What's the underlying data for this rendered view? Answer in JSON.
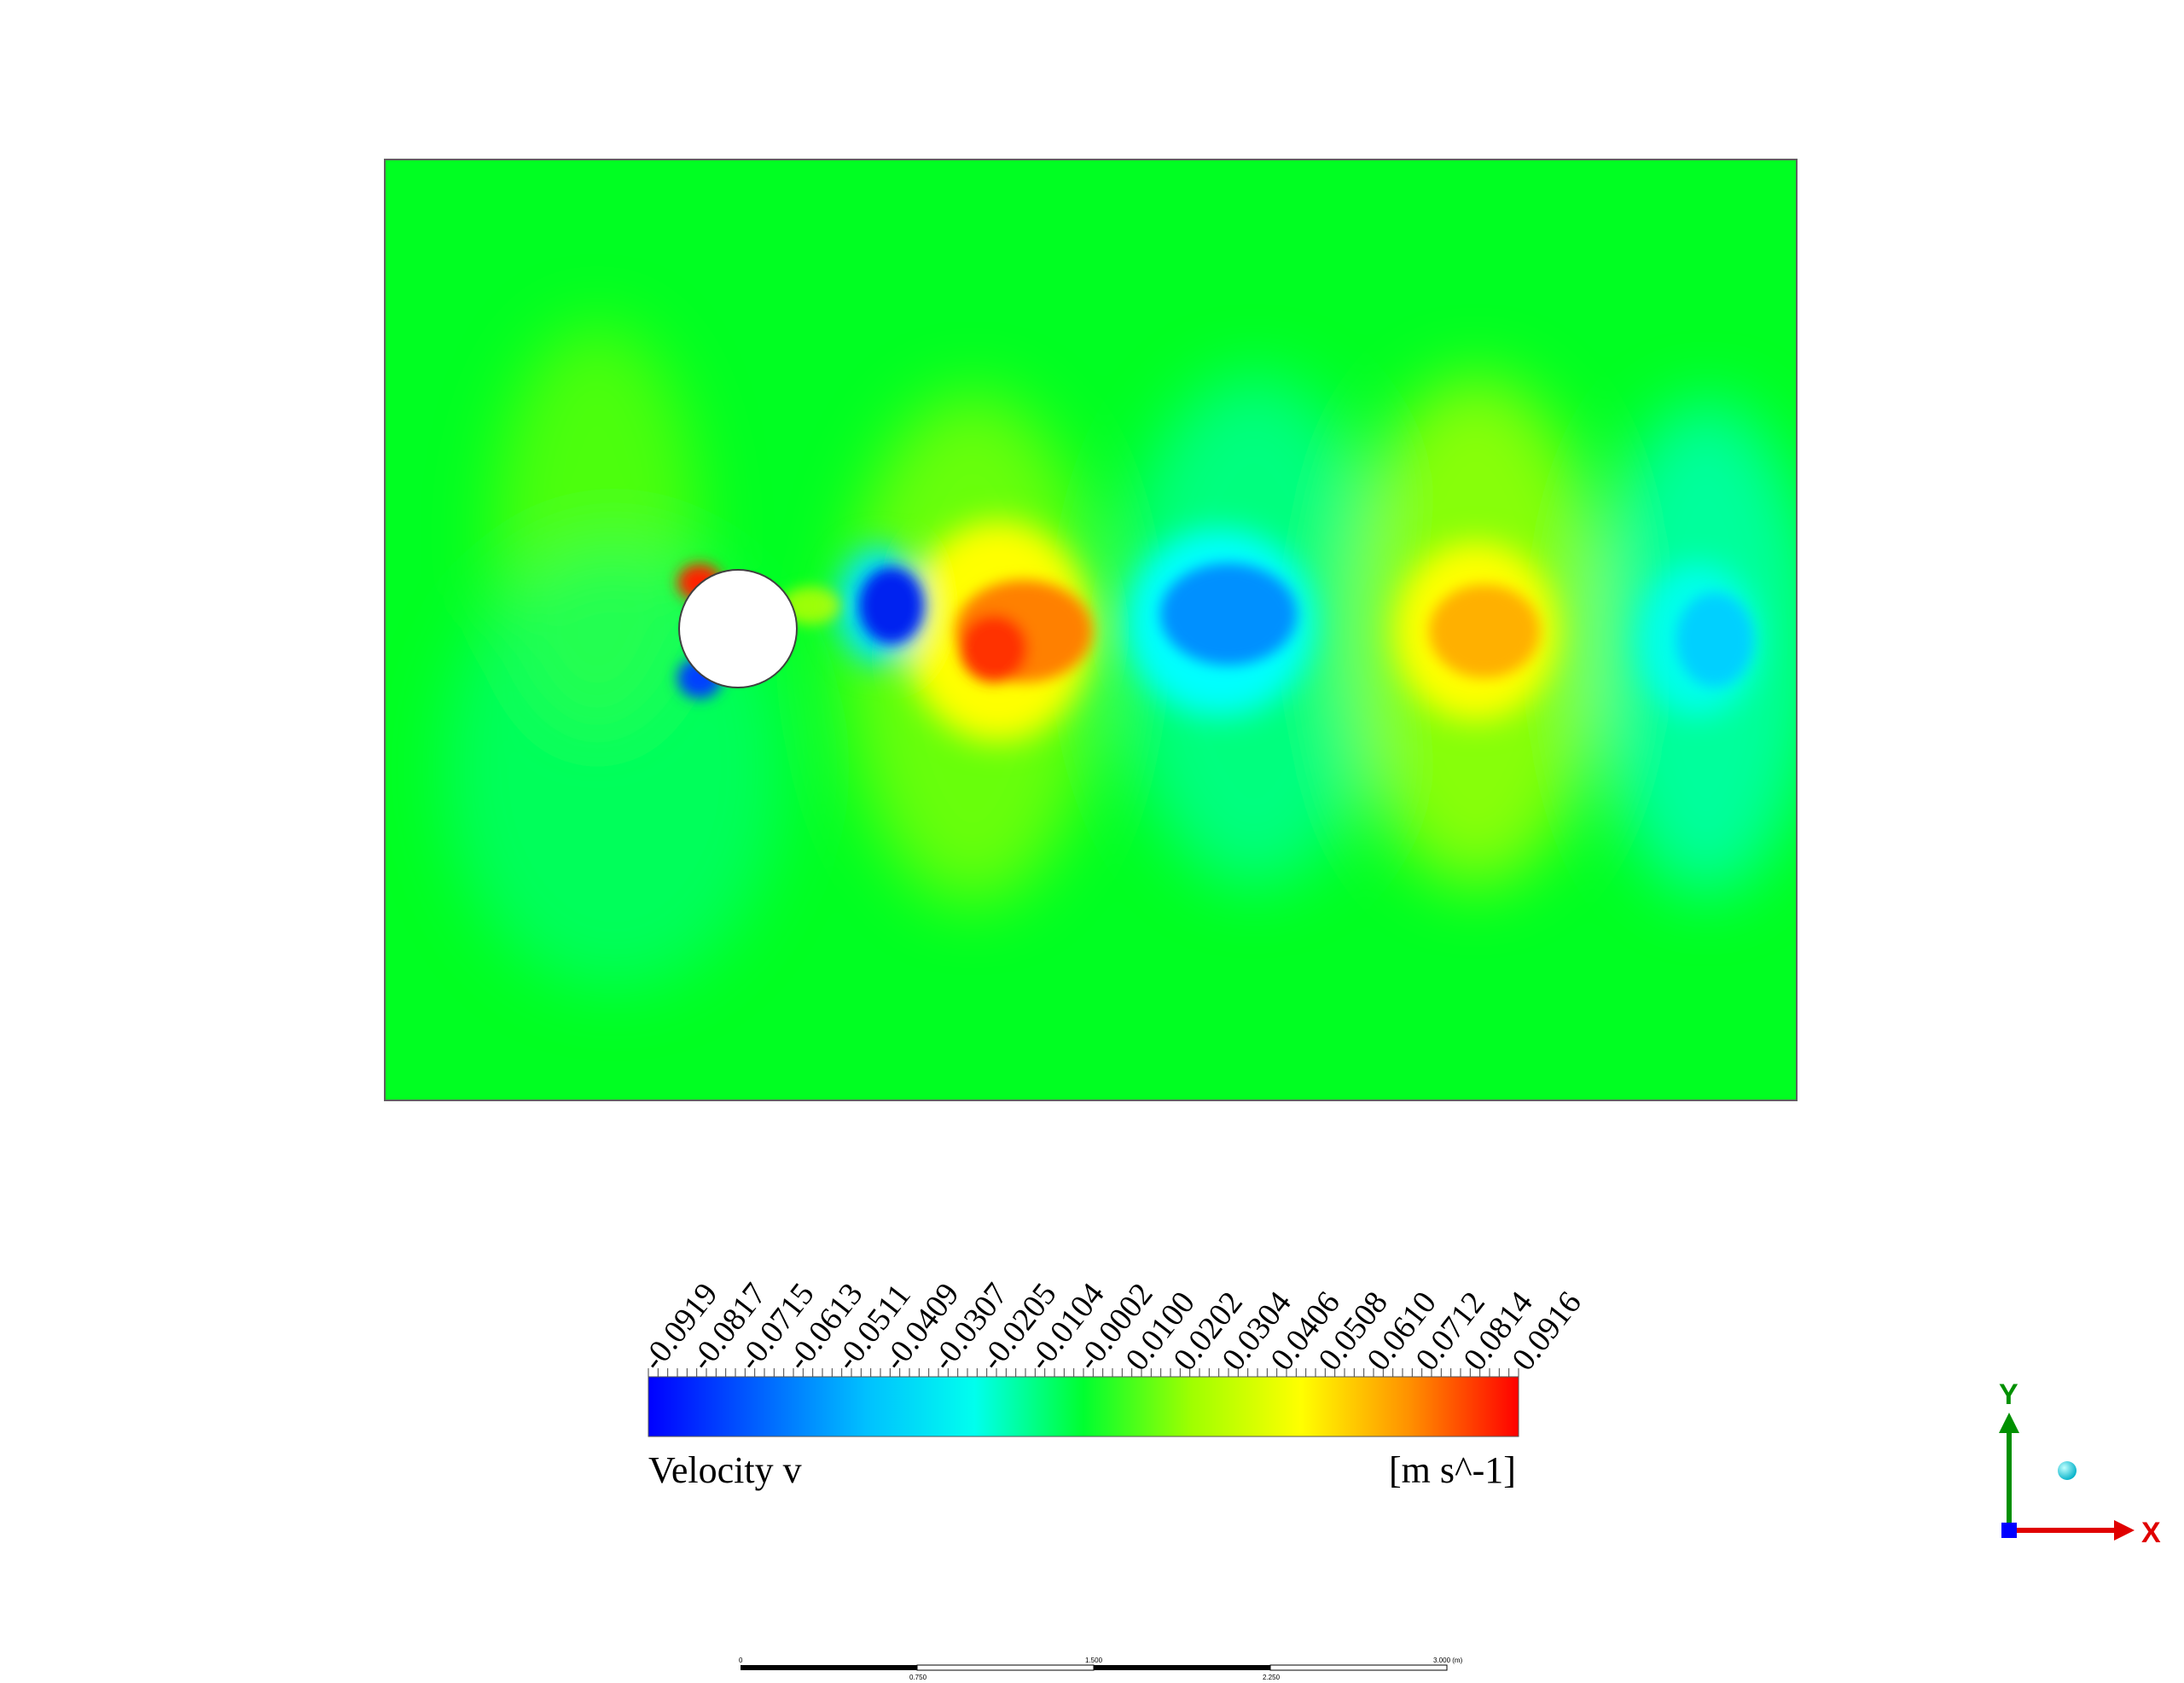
{
  "legend": {
    "title": "Velocity v",
    "units": "[m s^-1]",
    "min": -0.0919,
    "max": 0.0916,
    "tick_labels": [
      "-0.0919",
      "-0.0817",
      "-0.0715",
      "-0.0613",
      "-0.0511",
      "-0.0409",
      "-0.0307",
      "-0.0205",
      "-0.0104",
      "-0.0002",
      "0.0100",
      "0.0202",
      "0.0304",
      "0.0406",
      "0.0508",
      "0.0610",
      "0.0712",
      "0.0814",
      "0.0916"
    ],
    "colormap": [
      "#0000ff",
      "#0060ff",
      "#00c0ff",
      "#00ffee",
      "#00ff30",
      "#a0ff00",
      "#ffff00",
      "#ff9000",
      "#ff0000"
    ]
  },
  "field": {
    "background_color": "#00ff22",
    "obstacle": "cylinder",
    "vortices": [
      {
        "label": "upstream top",
        "sign": "positive",
        "value": 0.085
      },
      {
        "label": "upstream bottom",
        "sign": "negative",
        "value": -0.09
      },
      {
        "label": "near wake",
        "sign": "negative",
        "value": -0.085
      },
      {
        "label": "wake 1",
        "sign": "positive",
        "value": 0.08
      },
      {
        "label": "wake 2",
        "sign": "negative",
        "value": -0.06
      },
      {
        "label": "wake 3",
        "sign": "positive",
        "value": 0.06
      },
      {
        "label": "wake 4",
        "sign": "negative",
        "value": -0.04
      }
    ]
  },
  "scale_bar": {
    "top_labels": [
      "0",
      "1.500",
      "3.000 (m)"
    ],
    "bottom_labels": [
      "0.750",
      "2.250"
    ]
  },
  "axes_triad": {
    "x_label": "X",
    "y_label": "Y",
    "x_color": "#e00000",
    "y_color": "#009000",
    "z_color": "#0000ff"
  }
}
